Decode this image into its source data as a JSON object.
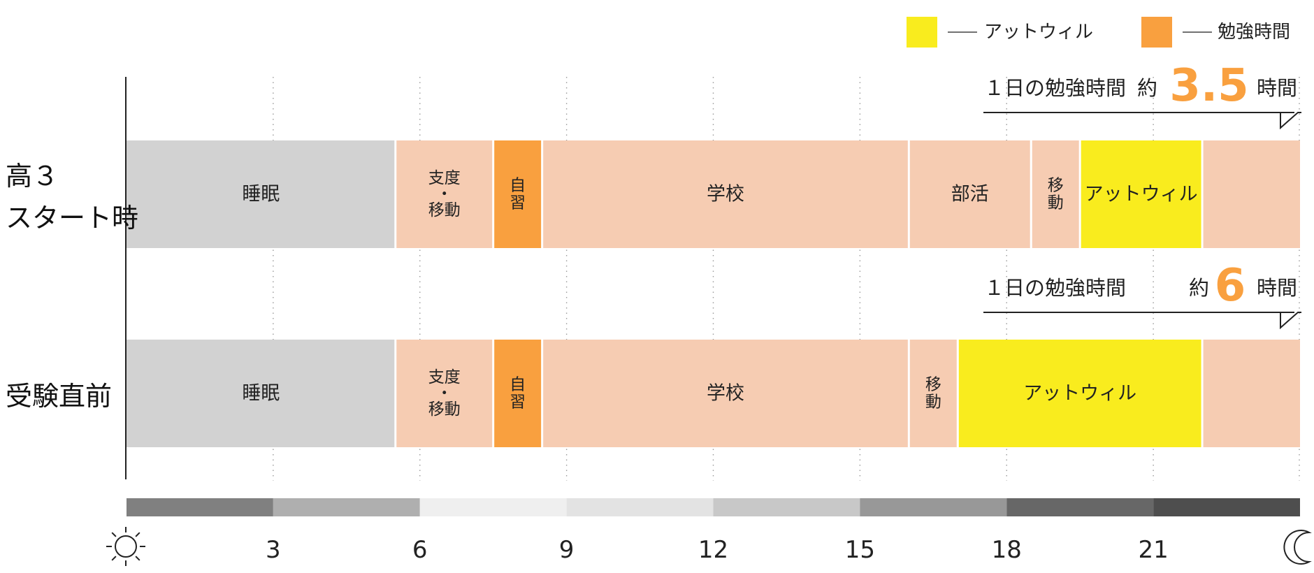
{
  "chart_data": {
    "type": "timeline-bar",
    "x_range": [
      0,
      24
    ],
    "x_ticks": [
      {
        "value": 3,
        "label": "3"
      },
      {
        "value": 6,
        "label": "6"
      },
      {
        "value": 9,
        "label": "9"
      },
      {
        "value": 12,
        "label": "12"
      },
      {
        "value": 15,
        "label": "15"
      },
      {
        "value": 18,
        "label": "18"
      },
      {
        "value": 21,
        "label": "21"
      }
    ],
    "x_axis_icons": {
      "start": "sun-icon",
      "end": "moon-icon"
    },
    "gridlines": "dotted-vertical",
    "legend_position": "top-right",
    "legend": [
      {
        "label": "アットウィル",
        "color": "#F9EC1E"
      },
      {
        "label": "勉強時間",
        "color": "#F9A03F"
      }
    ],
    "colors": {
      "sleep": "#D2D2D2",
      "activity": "#F6CCB2",
      "study": "#F9A03F",
      "attwill": "#F9EC1E",
      "number_accent": "#F9A03F"
    },
    "daylight_band": [
      {
        "start": 0,
        "end": 3,
        "color": "#808080"
      },
      {
        "start": 3,
        "end": 6,
        "color": "#AFAFAF"
      },
      {
        "start": 6,
        "end": 9,
        "color": "#EFEFEF"
      },
      {
        "start": 9,
        "end": 12,
        "color": "#E3E3E3"
      },
      {
        "start": 12,
        "end": 15,
        "color": "#C8C8C8"
      },
      {
        "start": 15,
        "end": 18,
        "color": "#989898"
      },
      {
        "start": 18,
        "end": 21,
        "color": "#676767"
      },
      {
        "start": 21,
        "end": 24,
        "color": "#4E4E4E"
      }
    ],
    "rows": [
      {
        "label_lines": [
          "高３",
          "スタート時"
        ],
        "summary": {
          "prefix": "１日の勉強時間",
          "approx": "約",
          "value": "3.5",
          "unit": "時間"
        },
        "segments": [
          {
            "start": 0,
            "end": 5.5,
            "kind": "sleep",
            "lines": [
              "睡眠"
            ]
          },
          {
            "start": 5.5,
            "end": 7.5,
            "kind": "activity",
            "lines": [
              "支度",
              "・",
              "移動"
            ]
          },
          {
            "start": 7.5,
            "end": 8.5,
            "kind": "study",
            "lines": [
              "自",
              "習"
            ]
          },
          {
            "start": 8.5,
            "end": 16,
            "kind": "activity",
            "lines": [
              "学校"
            ]
          },
          {
            "start": 16,
            "end": 18.5,
            "kind": "activity",
            "lines": [
              "部活"
            ]
          },
          {
            "start": 18.5,
            "end": 19.5,
            "kind": "activity",
            "lines": [
              "移",
              "動"
            ]
          },
          {
            "start": 19.5,
            "end": 22,
            "kind": "attwill",
            "lines": [
              "アットウィル"
            ]
          },
          {
            "start": 22,
            "end": 24,
            "kind": "activity",
            "lines": []
          }
        ]
      },
      {
        "label_lines": [
          "受験直前"
        ],
        "summary": {
          "prefix": "１日の勉強時間",
          "approx": "約",
          "value": "6",
          "unit": "時間"
        },
        "segments": [
          {
            "start": 0,
            "end": 5.5,
            "kind": "sleep",
            "lines": [
              "睡眠"
            ]
          },
          {
            "start": 5.5,
            "end": 7.5,
            "kind": "activity",
            "lines": [
              "支度",
              "・",
              "移動"
            ]
          },
          {
            "start": 7.5,
            "end": 8.5,
            "kind": "study",
            "lines": [
              "自",
              "習"
            ]
          },
          {
            "start": 8.5,
            "end": 16,
            "kind": "activity",
            "lines": [
              "学校"
            ]
          },
          {
            "start": 16,
            "end": 17,
            "kind": "activity",
            "lines": [
              "移",
              "動"
            ]
          },
          {
            "start": 17,
            "end": 22,
            "kind": "attwill",
            "lines": [
              "アットウィル"
            ]
          },
          {
            "start": 22,
            "end": 24,
            "kind": "activity",
            "lines": []
          }
        ]
      }
    ]
  }
}
